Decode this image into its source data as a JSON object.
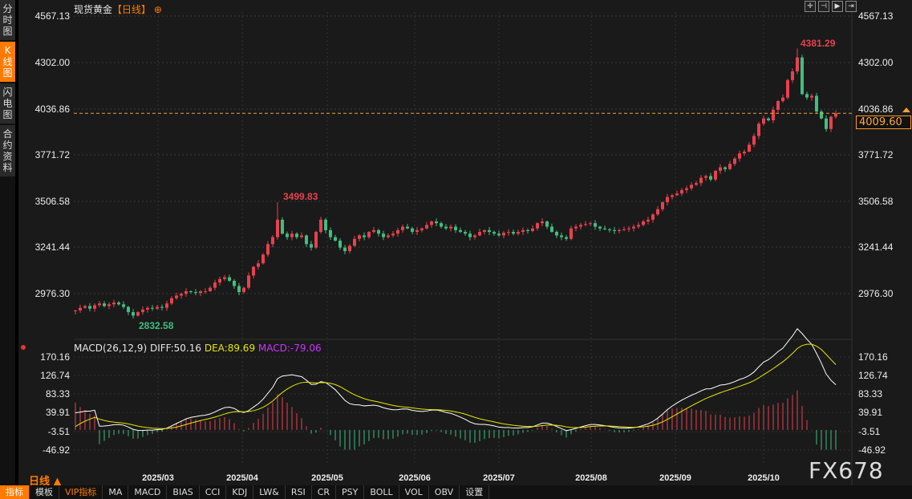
{
  "sidebar": {
    "tabs": [
      "分\n时\n图",
      "K\n线\n图",
      "闪\n电\n图",
      "合\n约\n资\n料"
    ],
    "active": 1
  },
  "header": {
    "symbol": "现货黄金",
    "period": "【日线】",
    "tools": [
      "crosshair-icon",
      "zoom-start-icon",
      "play-icon",
      "jump-end-icon"
    ]
  },
  "chart_data": {
    "type": "candlestick",
    "up_color": "#e8414f",
    "down_color": "#3fbf80",
    "price_ticks": [
      "4567.13",
      "4302.00",
      "4036.86",
      "3771.72",
      "3506.58",
      "3241.44",
      "2976.30"
    ],
    "x_ticks": [
      "2025/03",
      "2025/04",
      "2025/05",
      "2025/06",
      "2025/07",
      "2025/08",
      "2025/09",
      "2025/10"
    ],
    "last_price": "4009.60",
    "annotations": {
      "high": "4381.29",
      "mid_high": "3499.83",
      "low": "2832.58"
    },
    "closes": [
      2880,
      2895,
      2905,
      2890,
      2910,
      2920,
      2905,
      2915,
      2925,
      2915,
      2900,
      2870,
      2850,
      2870,
      2885,
      2895,
      2890,
      2900,
      2895,
      2920,
      2950,
      2965,
      2975,
      2990,
      2985,
      2980,
      2990,
      2990,
      3010,
      3040,
      3060,
      3070,
      3050,
      3020,
      2985,
      3010,
      3080,
      3130,
      3150,
      3200,
      3260,
      3300,
      3400,
      3320,
      3300,
      3320,
      3300,
      3310,
      3260,
      3240,
      3330,
      3400,
      3340,
      3300,
      3280,
      3240,
      3220,
      3250,
      3290,
      3310,
      3300,
      3330,
      3340,
      3320,
      3300,
      3310,
      3320,
      3340,
      3360,
      3350,
      3330,
      3340,
      3350,
      3370,
      3390,
      3380,
      3360,
      3350,
      3360,
      3340,
      3330,
      3320,
      3300,
      3310,
      3330,
      3340,
      3330,
      3320,
      3310,
      3325,
      3330,
      3320,
      3330,
      3340,
      3335,
      3350,
      3380,
      3390,
      3360,
      3330,
      3310,
      3300,
      3290,
      3350,
      3360,
      3370,
      3375,
      3380,
      3360,
      3350,
      3345,
      3340,
      3335,
      3340,
      3345,
      3350,
      3360,
      3370,
      3390,
      3400,
      3430,
      3460,
      3500,
      3530,
      3540,
      3550,
      3570,
      3580,
      3600,
      3610,
      3640,
      3650,
      3630,
      3680,
      3700,
      3690,
      3720,
      3750,
      3780,
      3790,
      3830,
      3880,
      3950,
      3980,
      3970,
      4030,
      4080,
      4100,
      4200,
      4250,
      4330,
      4120,
      4100,
      4110,
      4020,
      3980,
      3920,
      3990,
      4009.6
    ],
    "macd": {
      "label": "MACD(26,12,9)",
      "diff": "DIFF:50.16",
      "dea": "DEA:89.69",
      "macd": "MACD:-79.06",
      "ticks": [
        "170.16",
        "126.74",
        "83.33",
        "39.91",
        "-3.51",
        "-46.92"
      ],
      "diff_color": "#ffffff",
      "dea_color": "#e6e600",
      "macd_color": "#cc33ff"
    }
  },
  "footer": {
    "period": "日线 ▲",
    "buttons": [
      "指标",
      "模板",
      "VIP指标",
      "MA",
      "MACD",
      "BIAS",
      "CCI",
      "KDJ",
      "LW&",
      "RSI",
      "CR",
      "PSY",
      "BOLL",
      "VOL",
      "OBV",
      "设置"
    ]
  },
  "watermark": "FX678"
}
